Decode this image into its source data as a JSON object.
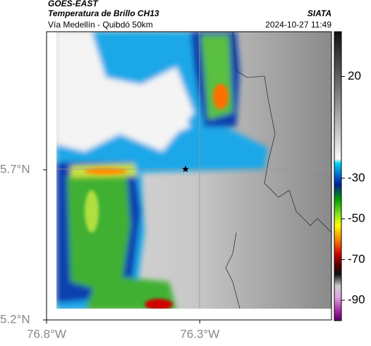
{
  "header": {
    "title1": "GOES-EAST",
    "title2": "Temperatura de Brillo CH13",
    "subtitle": "Vía Medellín - Quibdó 50km",
    "source": "SIATA",
    "datetime": "2024-10-27 11:49"
  },
  "map": {
    "xlim": [
      -76.8,
      -75.87
    ],
    "ylim": [
      5.2,
      6.16
    ],
    "xticks": [
      {
        "value": -76.8,
        "label": "76.8°W"
      },
      {
        "value": -76.3,
        "label": "76.3°W"
      }
    ],
    "yticks": [
      {
        "value": 5.7,
        "label": "5.7°N"
      },
      {
        "value": 5.2,
        "label": "5.2°N"
      }
    ]
  },
  "colorbar": {
    "clim": [
      -100,
      42
    ],
    "ticks": [
      20,
      -30,
      -50,
      -70,
      -90
    ]
  }
}
